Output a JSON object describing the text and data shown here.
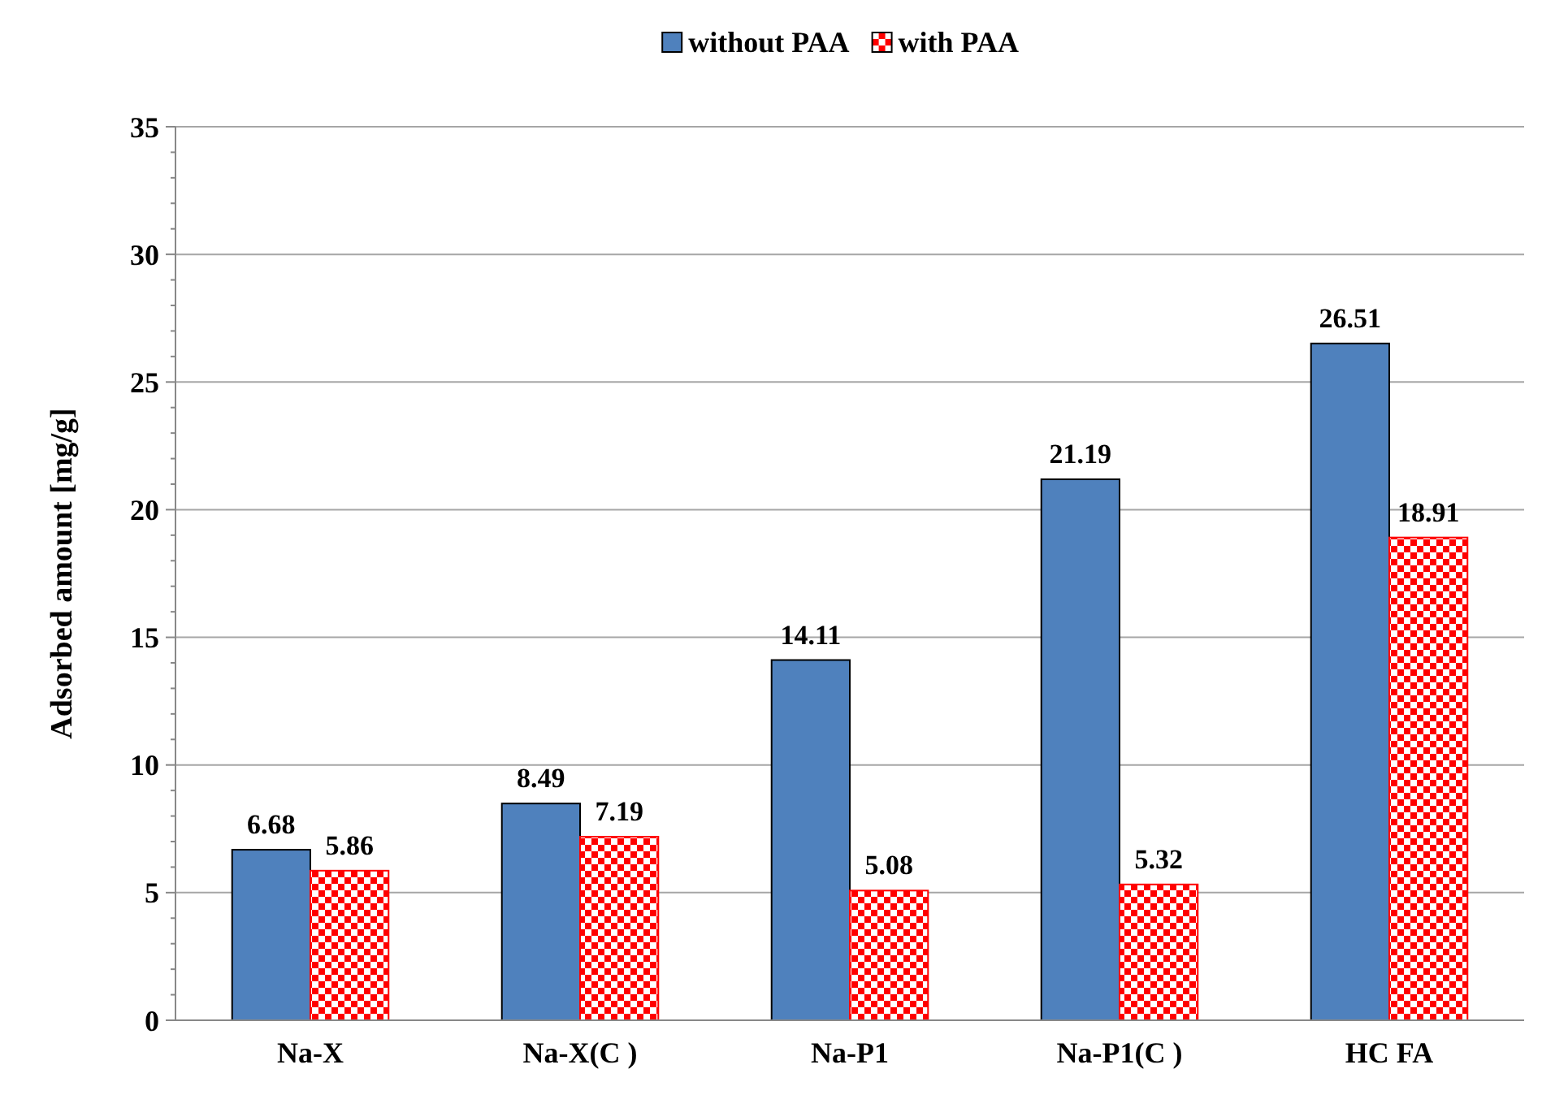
{
  "chart_data": {
    "type": "bar",
    "ylabel": "Adsorbed amount [mg/g]",
    "categories": [
      "Na-X",
      "Na-X(C )",
      "Na-P1",
      "Na-P1(C )",
      "HC FA"
    ],
    "series": [
      {
        "name": "without PAA",
        "color": "#4f81bd",
        "values": [
          6.68,
          8.49,
          14.11,
          21.19,
          26.51
        ]
      },
      {
        "name": "with PAA",
        "color": "#ff0000",
        "values": [
          5.86,
          7.19,
          5.08,
          5.32,
          18.91
        ]
      }
    ],
    "ylim": [
      0,
      35
    ],
    "yticks": [
      0,
      {
        "value": 1,
        "label": null
      },
      {
        "value": 2,
        "label": null
      },
      {
        "value": 3,
        "label": null
      },
      {
        "value": 4,
        "label": null
      },
      5,
      {
        "value": 6,
        "label": null
      },
      {
        "value": 7,
        "label": null
      },
      {
        "value": 8,
        "label": null
      },
      {
        "value": 9,
        "label": null
      },
      10,
      {
        "value": 11,
        "label": null
      },
      {
        "value": 12,
        "label": null
      },
      {
        "value": 13,
        "label": null
      },
      {
        "value": 14,
        "label": null
      },
      15,
      {
        "value": 16,
        "label": null
      },
      {
        "value": 17,
        "label": null
      },
      {
        "value": 18,
        "label": null
      },
      {
        "value": 19,
        "label": null
      },
      20,
      {
        "value": 21,
        "label": null
      },
      {
        "value": 22,
        "label": null
      },
      {
        "value": 23,
        "label": null
      },
      {
        "value": 24,
        "label": null
      },
      25,
      {
        "value": 26,
        "label": null
      },
      {
        "value": 27,
        "label": null
      },
      {
        "value": 28,
        "label": null
      },
      {
        "value": 29,
        "label": null
      },
      30,
      {
        "value": 31,
        "label": null
      },
      {
        "value": 32,
        "label": null
      },
      {
        "value": 33,
        "label": null
      },
      {
        "value": 34,
        "label": null
      },
      35
    ],
    "grid": "y",
    "legend": "top",
    "data_labels": true
  }
}
